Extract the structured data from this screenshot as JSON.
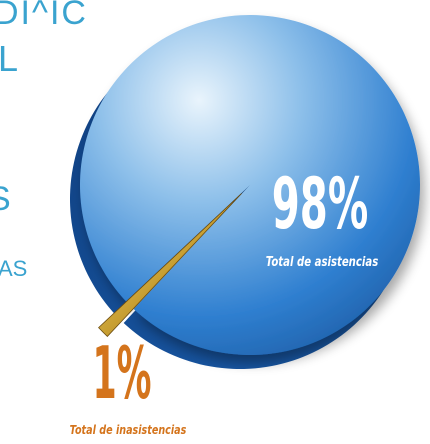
{
  "left_text_fragments": {
    "line1": "DI^IC",
    "line2": "L",
    "line3": "S",
    "line4": "AS"
  },
  "chart_data": {
    "type": "pie",
    "title": "",
    "slices": [
      {
        "label": "Total de asistencias",
        "value": 98,
        "display_value": "98%"
      },
      {
        "label": "Total de inasistencias",
        "value": 1,
        "display_value": "1%"
      }
    ],
    "colors": {
      "main_slice": "#2f7fd0",
      "small_slice": "#c9a033",
      "label_text_main": "#ffffff",
      "label_text_small": "#d4741c"
    }
  }
}
